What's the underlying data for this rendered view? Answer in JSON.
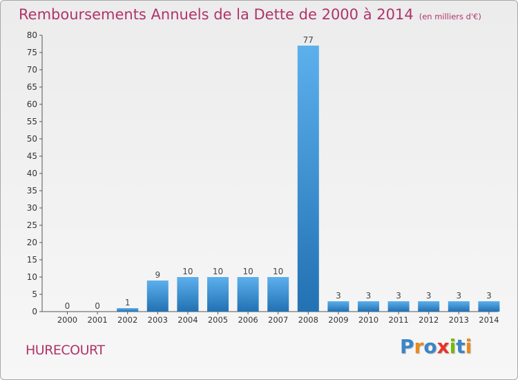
{
  "title": "Remboursements Annuels de la Dette de 2000 à 2014",
  "subtitle": "(en milliers d'€)",
  "commune": "HURECOURT",
  "logo": {
    "text": "Proxiti",
    "letters": [
      {
        "char": "P",
        "color": "#3a86c8"
      },
      {
        "char": "r",
        "color": "#e88a1a"
      },
      {
        "char": "o",
        "color": "#3a86c8"
      },
      {
        "char": "x",
        "color": "#e8332a"
      },
      {
        "char": "i",
        "color": "#7ab800"
      },
      {
        "char": "t",
        "color": "#3a86c8"
      },
      {
        "char": "i",
        "color": "#e88a1a"
      }
    ]
  },
  "chart_data": {
    "type": "bar",
    "title": "Remboursements Annuels de la Dette de 2000 à 2014",
    "subtitle": "(en milliers d'€)",
    "xlabel": "",
    "ylabel": "",
    "categories": [
      "2000",
      "2001",
      "2002",
      "2003",
      "2004",
      "2005",
      "2006",
      "2007",
      "2008",
      "2009",
      "2010",
      "2011",
      "2012",
      "2013",
      "2014"
    ],
    "values": [
      0,
      0,
      1,
      9,
      10,
      10,
      10,
      10,
      77,
      3,
      3,
      3,
      3,
      3,
      3
    ],
    "data_labels": [
      "0",
      "0",
      "1",
      "9",
      "10",
      "10",
      "10",
      "10",
      "77",
      "3",
      "3",
      "3",
      "3",
      "3",
      "3"
    ],
    "ylim": [
      0,
      80
    ],
    "yticks": [
      0,
      5,
      10,
      15,
      20,
      25,
      30,
      35,
      40,
      45,
      50,
      55,
      60,
      65,
      70,
      75,
      80
    ],
    "grid": false,
    "legend": "none",
    "bar_color": "#3d8fd3"
  }
}
